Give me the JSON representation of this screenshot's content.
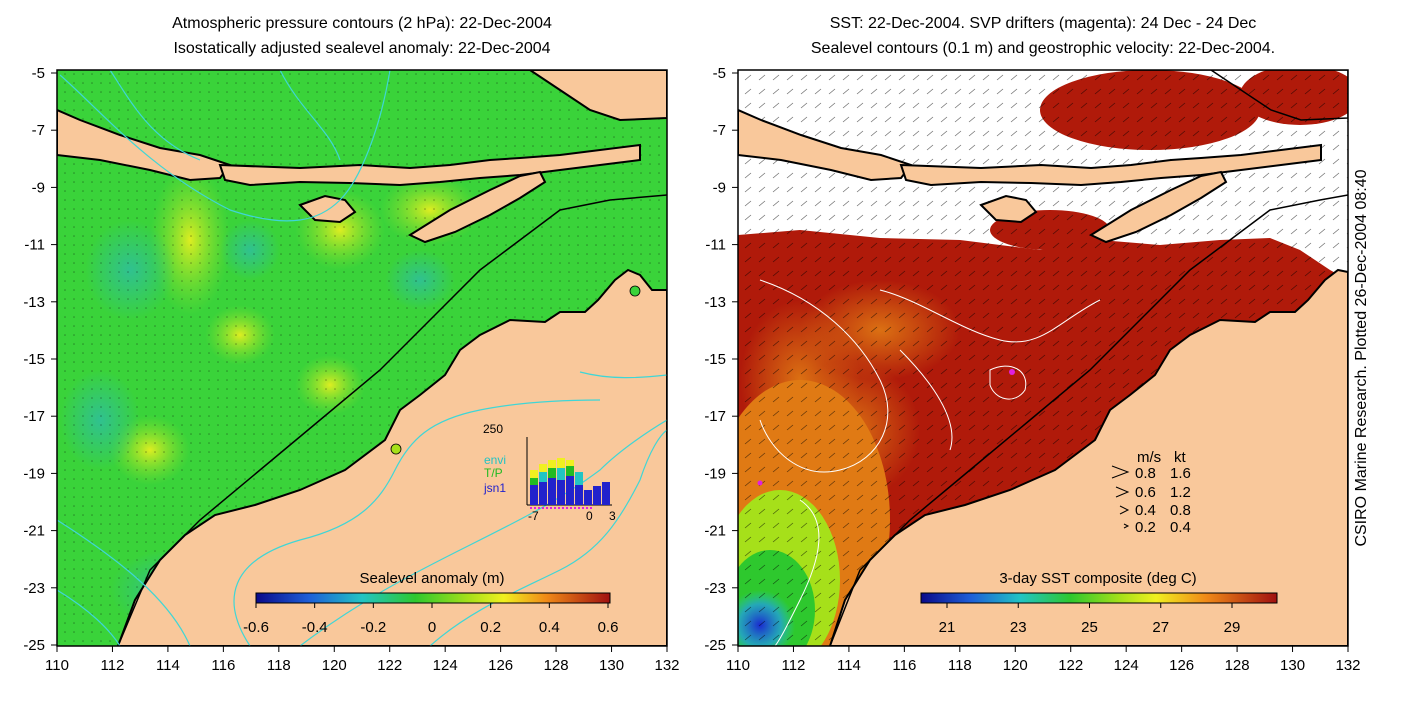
{
  "left_panel": {
    "title_line1": "Atmospheric pressure contours (2 hPa): 22-Dec-2004",
    "title_line2": "Isostatically adjusted sealevel anomaly: 22-Dec-2004",
    "colorbar_label": "Sealevel anomaly (m)",
    "colorbar_ticks": [
      "-0.6",
      "-0.4",
      "-0.2",
      "0",
      "0.2",
      "0.4",
      "0.6"
    ],
    "inset": {
      "ymax_label": "250",
      "legend": [
        {
          "label": "envi",
          "color": "#22c4c4"
        },
        {
          "label": "T/P",
          "color": "#22bb22"
        },
        {
          "label": "jsn1",
          "color": "#2222cc"
        }
      ],
      "x_ticks": [
        "-7",
        "0",
        "3"
      ]
    }
  },
  "right_panel": {
    "title_line1": "SST: 22-Dec-2004. SVP drifters (magenta): 24 Dec - 24 Dec",
    "title_line2": "Sealevel contours (0.1 m) and geostrophic velocity: 22-Dec-2004.",
    "colorbar_label": "3-day SST composite (deg C)",
    "colorbar_ticks": [
      "21",
      "23",
      "25",
      "27",
      "29"
    ],
    "velocity_key": {
      "header_ms": "m/s",
      "header_kt": "kt",
      "rows": [
        {
          "ms": "0.8",
          "kt": "1.6"
        },
        {
          "ms": "0.6",
          "kt": "1.2"
        },
        {
          "ms": "0.4",
          "kt": "0.8"
        },
        {
          "ms": "0.2",
          "kt": "0.4"
        }
      ]
    }
  },
  "y_ticks": [
    "-5",
    "-7",
    "-9",
    "-11",
    "-13",
    "-15",
    "-17",
    "-19",
    "-21",
    "-23",
    "-25"
  ],
  "x_ticks": [
    "110",
    "112",
    "114",
    "116",
    "118",
    "120",
    "122",
    "124",
    "126",
    "128",
    "130",
    "132"
  ],
  "side_credit": "CSIRO Marine Research. Plotted 26-Dec-2004 08:40",
  "colors": {
    "land": "#f9c89b",
    "ocean_green": "#3ad33a",
    "sst_red": "#b01a0a",
    "contour_cyan": "#3fd6d6"
  }
}
